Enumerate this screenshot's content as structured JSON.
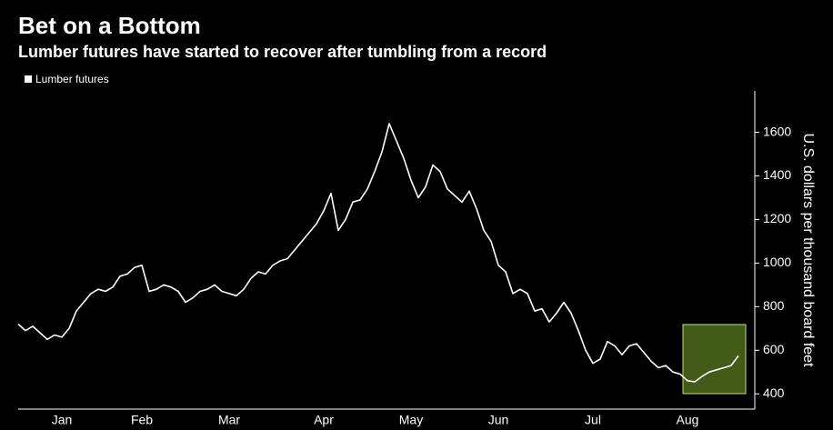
{
  "chart_data": {
    "type": "line",
    "title": "Bet on a Bottom",
    "subtitle": "Lumber futures have started to recover after tumbling from a record",
    "y_label": "U.S. dollars per thousand board feet",
    "legend": "top-left",
    "categories": [
      null,
      null,
      null,
      null,
      null,
      null,
      "Jan",
      null,
      null,
      null,
      null,
      null,
      null,
      null,
      null,
      null,
      null,
      "Feb",
      null,
      null,
      null,
      null,
      null,
      null,
      null,
      null,
      null,
      null,
      null,
      "Mar",
      null,
      null,
      null,
      null,
      null,
      null,
      null,
      null,
      null,
      null,
      null,
      null,
      "Apr",
      null,
      null,
      null,
      null,
      null,
      null,
      null,
      null,
      null,
      null,
      null,
      "May",
      null,
      null,
      null,
      null,
      null,
      null,
      null,
      null,
      null,
      null,
      null,
      "Jun",
      null,
      null,
      null,
      null,
      null,
      null,
      null,
      null,
      null,
      null,
      null,
      null,
      "Jul",
      null,
      null,
      null,
      null,
      null,
      null,
      null,
      null,
      null,
      null,
      null,
      null,
      "Aug",
      null,
      null,
      null,
      null,
      null,
      null,
      null
    ],
    "series": [
      {
        "name": "Lumber futures",
        "color": "#ffffff",
        "values": [
          720,
          690,
          710,
          680,
          650,
          670,
          660,
          700,
          780,
          820,
          860,
          880,
          870,
          890,
          940,
          950,
          980,
          990,
          870,
          880,
          900,
          890,
          870,
          820,
          840,
          870,
          880,
          900,
          870,
          860,
          850,
          880,
          930,
          960,
          950,
          990,
          1010,
          1020,
          1060,
          1100,
          1140,
          1180,
          1240,
          1320,
          1150,
          1200,
          1280,
          1290,
          1340,
          1420,
          1510,
          1640,
          1560,
          1480,
          1380,
          1300,
          1350,
          1450,
          1420,
          1340,
          1310,
          1280,
          1330,
          1250,
          1150,
          1100,
          990,
          960,
          860,
          880,
          860,
          780,
          790,
          730,
          770,
          820,
          770,
          690,
          600,
          540,
          560,
          640,
          620,
          580,
          620,
          630,
          590,
          550,
          520,
          530,
          500,
          490,
          460,
          455,
          480,
          500,
          510,
          520,
          530,
          575
        ]
      }
    ],
    "ylim": [
      330,
      1790
    ],
    "yticks": [
      400,
      600,
      800,
      1000,
      1200,
      1400,
      1600
    ],
    "grid": false
  }
}
